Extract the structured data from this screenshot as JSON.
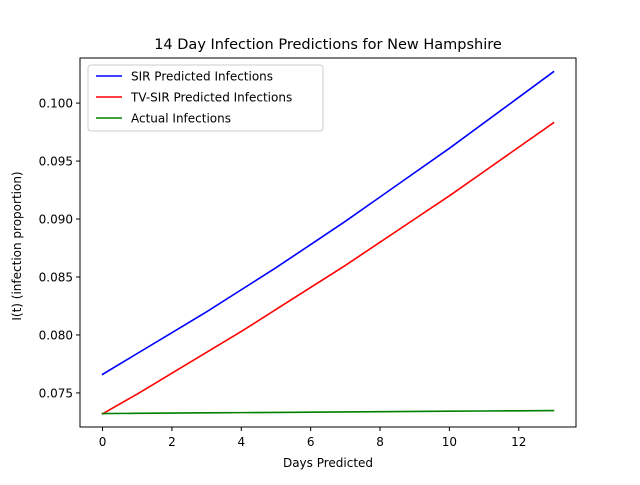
{
  "chart_data": {
    "type": "line",
    "title": "14 Day Infection Predictions for New Hampshire",
    "xlabel": "Days Predicted",
    "ylabel": "I(t) (infection proportion)",
    "xlim": [
      -0.65,
      13.65
    ],
    "ylim": [
      0.07206,
      0.10389
    ],
    "x_ticks": [
      0,
      2,
      4,
      6,
      8,
      10,
      12
    ],
    "x_tick_labels": [
      "0",
      "2",
      "4",
      "6",
      "8",
      "10",
      "12"
    ],
    "y_ticks": [
      0.075,
      0.08,
      0.085,
      0.09,
      0.095,
      0.1
    ],
    "y_tick_labels": [
      "0.075",
      "0.080",
      "0.085",
      "0.090",
      "0.095",
      "0.100"
    ],
    "grid": false,
    "legend_position": "top-left",
    "x": [
      0,
      1,
      2,
      3,
      4,
      5,
      6,
      7,
      8,
      9,
      10,
      11,
      12,
      13
    ],
    "series": [
      {
        "name": "SIR Predicted Infections",
        "color": "#0000ff",
        "values": [
          0.0766,
          0.0784,
          0.0802,
          0.082,
          0.0839,
          0.0858,
          0.0878,
          0.0898,
          0.0919,
          0.094,
          0.0961,
          0.0983,
          0.1005,
          0.1027
        ]
      },
      {
        "name": "TV-SIR Predicted Infections",
        "color": "#ff0000",
        "values": [
          0.0732,
          0.0749,
          0.0767,
          0.0785,
          0.0803,
          0.0822,
          0.0841,
          0.086,
          0.088,
          0.09,
          0.092,
          0.0941,
          0.0962,
          0.0983
        ]
      },
      {
        "name": "Actual Infections",
        "color": "#008000",
        "values": [
          0.07322,
          0.07324,
          0.07326,
          0.07328,
          0.0733,
          0.07332,
          0.07334,
          0.07336,
          0.07338,
          0.0734,
          0.07342,
          0.07344,
          0.07346,
          0.07348
        ]
      }
    ]
  }
}
